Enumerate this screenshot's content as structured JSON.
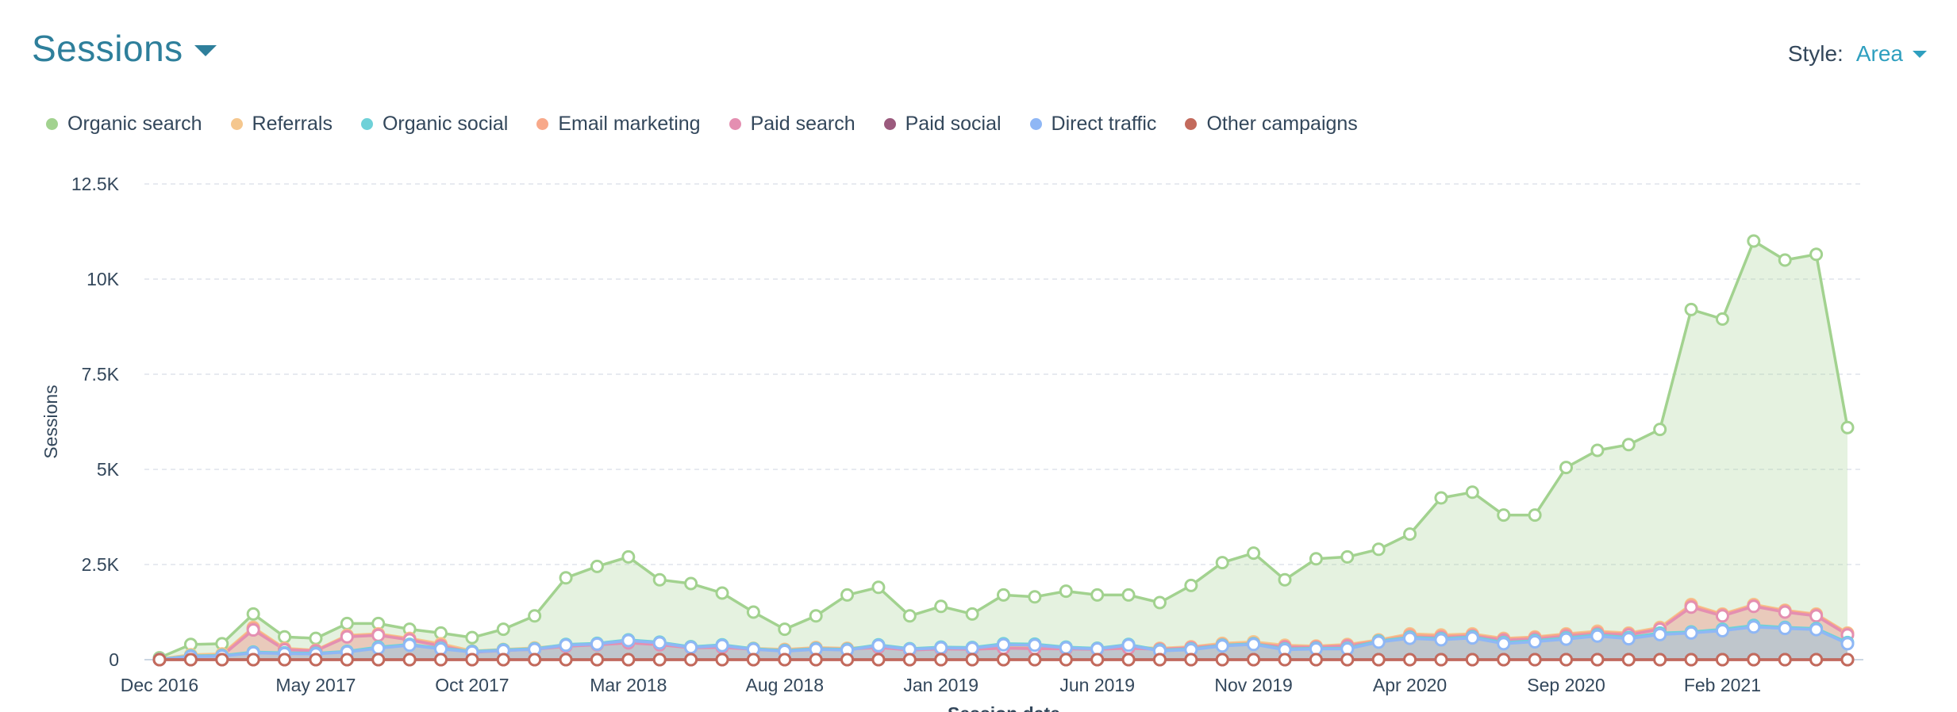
{
  "header": {
    "title": "Sessions",
    "style_label": "Style:",
    "style_value": "Area"
  },
  "legend": [
    {
      "label": "Organic search",
      "color": "#a2d28f"
    },
    {
      "label": "Referrals",
      "color": "#f5c78e"
    },
    {
      "label": "Organic social",
      "color": "#6fd1d8"
    },
    {
      "label": "Email marketing",
      "color": "#f8a98a"
    },
    {
      "label": "Paid search",
      "color": "#e48fb1"
    },
    {
      "label": "Paid social",
      "color": "#9b5a7d"
    },
    {
      "label": "Direct traffic",
      "color": "#8fb7f5"
    },
    {
      "label": "Other campaigns",
      "color": "#c36a5c"
    }
  ],
  "chart_data": {
    "type": "area",
    "title": "Sessions",
    "ylabel": "Sessions",
    "xlabel": "Session date",
    "ylim": [
      0,
      12500
    ],
    "yticks": [
      0,
      2500,
      5000,
      7500,
      10000,
      12500
    ],
    "ytick_labels": [
      "0",
      "2.5K",
      "5K",
      "7.5K",
      "10K",
      "12.5K"
    ],
    "x_tick_labels": [
      {
        "index": 0,
        "label": "Dec 2016"
      },
      {
        "index": 5,
        "label": "May 2017"
      },
      {
        "index": 10,
        "label": "Oct 2017"
      },
      {
        "index": 15,
        "label": "Mar 2018"
      },
      {
        "index": 20,
        "label": "Aug 2018"
      },
      {
        "index": 25,
        "label": "Jan 2019"
      },
      {
        "index": 30,
        "label": "Jun 2019"
      },
      {
        "index": 35,
        "label": "Nov 2019"
      },
      {
        "index": 40,
        "label": "Apr 2020"
      },
      {
        "index": 45,
        "label": "Sep 2020"
      },
      {
        "index": 50,
        "label": "Feb 2021"
      }
    ],
    "grid": true,
    "legend_position": "top-left",
    "x": [
      "2016-12",
      "2017-01",
      "2017-02",
      "2017-03",
      "2017-04",
      "2017-05",
      "2017-06",
      "2017-07",
      "2017-08",
      "2017-09",
      "2017-10",
      "2017-11",
      "2017-12",
      "2018-01",
      "2018-02",
      "2018-03",
      "2018-04",
      "2018-05",
      "2018-06",
      "2018-07",
      "2018-08",
      "2018-09",
      "2018-10",
      "2018-11",
      "2018-12",
      "2019-01",
      "2019-02",
      "2019-03",
      "2019-04",
      "2019-05",
      "2019-06",
      "2019-07",
      "2019-08",
      "2019-09",
      "2019-10",
      "2019-11",
      "2019-12",
      "2020-01",
      "2020-02",
      "2020-03",
      "2020-04",
      "2020-05",
      "2020-06",
      "2020-07",
      "2020-08",
      "2020-09",
      "2020-10",
      "2020-11",
      "2020-12",
      "2021-01",
      "2021-02",
      "2021-03",
      "2021-04",
      "2021-05",
      "2021-06"
    ],
    "series": [
      {
        "name": "Organic search",
        "color": "#a2d28f",
        "values": [
          50,
          400,
          420,
          1200,
          600,
          560,
          950,
          950,
          800,
          700,
          580,
          800,
          1150,
          2150,
          2450,
          2700,
          2100,
          2000,
          1750,
          1250,
          800,
          1150,
          1700,
          1900,
          1150,
          1400,
          1200,
          1700,
          1650,
          1800,
          1700,
          1700,
          1500,
          1950,
          2550,
          2800,
          2100,
          2650,
          2700,
          2900,
          3300,
          4250,
          4400,
          3800,
          3800,
          5050,
          5500,
          5650,
          6050,
          9200,
          8950,
          11000,
          10500,
          10650,
          6100
        ]
      },
      {
        "name": "Referrals",
        "color": "#f5c78e",
        "values": [
          15,
          130,
          150,
          850,
          300,
          250,
          640,
          680,
          560,
          420,
          230,
          270,
          310,
          380,
          420,
          480,
          420,
          340,
          350,
          300,
          270,
          320,
          300,
          350,
          280,
          310,
          300,
          330,
          320,
          310,
          300,
          330,
          300,
          340,
          430,
          470,
          380,
          360,
          400,
          520,
          680,
          650,
          680,
          560,
          600,
          680,
          750,
          700,
          850,
          1450,
          1200,
          1450,
          1300,
          1200,
          700
        ]
      },
      {
        "name": "Organic social",
        "color": "#6fd1d8",
        "values": [
          10,
          100,
          110,
          200,
          180,
          170,
          220,
          330,
          400,
          300,
          220,
          260,
          290,
          400,
          430,
          520,
          460,
          340,
          390,
          290,
          240,
          290,
          270,
          390,
          290,
          330,
          320,
          420,
          410,
          330,
          300,
          400,
          250,
          280,
          380,
          420,
          280,
          300,
          300,
          490,
          590,
          550,
          600,
          450,
          500,
          570,
          650,
          580,
          700,
          730,
          800,
          900,
          850,
          820,
          450
        ]
      },
      {
        "name": "Email marketing",
        "color": "#f8a98a",
        "values": [
          10,
          100,
          120,
          820,
          280,
          240,
          620,
          660,
          540,
          380,
          200,
          250,
          280,
          360,
          400,
          450,
          400,
          320,
          330,
          280,
          250,
          300,
          280,
          330,
          260,
          290,
          280,
          310,
          300,
          290,
          280,
          310,
          280,
          320,
          400,
          430,
          350,
          340,
          380,
          500,
          650,
          620,
          650,
          540,
          580,
          660,
          720,
          680,
          820,
          1420,
          1180,
          1420,
          1280,
          1180,
          680
        ]
      },
      {
        "name": "Paid search",
        "color": "#e48fb1",
        "values": [
          0,
          90,
          100,
          780,
          260,
          230,
          600,
          640,
          520,
          360,
          190,
          240,
          270,
          350,
          390,
          440,
          390,
          310,
          320,
          270,
          240,
          290,
          270,
          320,
          250,
          280,
          270,
          300,
          290,
          280,
          270,
          300,
          270,
          310,
          380,
          410,
          330,
          320,
          360,
          470,
          600,
          580,
          620,
          510,
          540,
          620,
          680,
          650,
          800,
          1380,
          1150,
          1400,
          1250,
          1150,
          650
        ]
      },
      {
        "name": "Paid social",
        "color": "#9b5a7d",
        "values": [
          0,
          0,
          0,
          0,
          0,
          0,
          0,
          0,
          0,
          0,
          0,
          0,
          0,
          0,
          0,
          0,
          0,
          0,
          0,
          0,
          0,
          0,
          0,
          0,
          0,
          0,
          0,
          0,
          0,
          0,
          0,
          0,
          0,
          0,
          0,
          0,
          0,
          0,
          0,
          0,
          0,
          0,
          0,
          0,
          0,
          0,
          0,
          0,
          0,
          0,
          0,
          0,
          0,
          0,
          0
        ]
      },
      {
        "name": "Direct traffic",
        "color": "#8fb7f5",
        "values": [
          5,
          80,
          90,
          180,
          160,
          150,
          200,
          300,
          380,
          280,
          200,
          240,
          270,
          380,
          410,
          500,
          440,
          320,
          370,
          270,
          220,
          270,
          250,
          370,
          270,
          310,
          300,
          390,
          380,
          310,
          280,
          380,
          230,
          260,
          360,
          400,
          260,
          280,
          280,
          460,
          560,
          520,
          570,
          420,
          470,
          540,
          620,
          550,
          660,
          700,
          760,
          860,
          820,
          790,
          420
        ]
      },
      {
        "name": "Other campaigns",
        "color": "#c36a5c",
        "values": [
          0,
          0,
          0,
          0,
          0,
          0,
          0,
          0,
          0,
          0,
          0,
          0,
          0,
          0,
          0,
          0,
          0,
          0,
          0,
          0,
          0,
          0,
          0,
          0,
          0,
          0,
          0,
          0,
          0,
          0,
          0,
          0,
          0,
          0,
          0,
          0,
          0,
          0,
          0,
          0,
          0,
          0,
          0,
          0,
          0,
          0,
          0,
          0,
          0,
          0,
          0,
          0,
          0,
          0,
          0
        ]
      }
    ]
  }
}
